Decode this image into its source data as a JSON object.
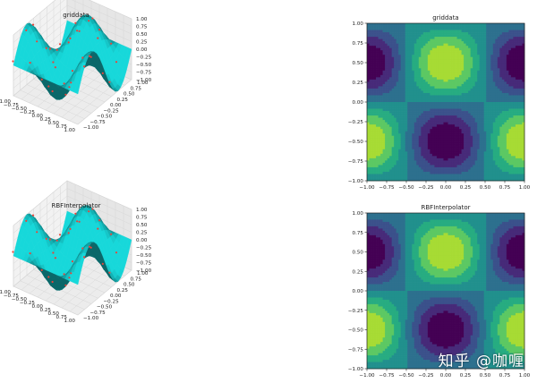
{
  "watermark": "知乎 @咖喱",
  "chart_data": [
    {
      "type": "surface3d",
      "title": "griddata",
      "x_ticks": [
        "−1.00",
        "−0.75",
        "−0.50",
        "−0.25",
        "0.00",
        "0.25",
        "0.50",
        "0.75",
        "1.00"
      ],
      "y_ticks": [
        "−1.00",
        "−0.75",
        "−0.50",
        "−0.25",
        "0.00",
        "0.25",
        "0.50",
        "0.75",
        "1.00"
      ],
      "z_ticks": [
        "1.00",
        "0.75",
        "0.50",
        "0.25",
        "0.00",
        "−0.25",
        "−0.50",
        "−0.75",
        "−1.00"
      ],
      "xlim": [
        -1,
        1
      ],
      "ylim": [
        -1,
        1
      ],
      "zlim": [
        -1,
        1
      ],
      "surface_color": "#1bbcbc",
      "point_color": "#e8443a",
      "grid": true
    },
    {
      "type": "contour",
      "title": "griddata",
      "x_ticks": [
        "−1.00",
        "−0.75",
        "−0.50",
        "−0.25",
        "0.00",
        "0.25",
        "0.50",
        "0.75",
        "1.00"
      ],
      "y_ticks": [
        "1.00",
        "0.75",
        "0.50",
        "0.25",
        "0.00",
        "−0.25",
        "−0.50",
        "−0.75",
        "−1.00"
      ],
      "xlim": [
        -1,
        1
      ],
      "ylim": [
        -1,
        1
      ],
      "colormap": "viridis"
    },
    {
      "type": "surface3d",
      "title": "RBFInterpolator",
      "x_ticks": [
        "−1.00",
        "−0.75",
        "−0.50",
        "−0.25",
        "0.00",
        "0.25",
        "0.50",
        "0.75",
        "1.00"
      ],
      "y_ticks": [
        "−1.00",
        "−0.75",
        "−0.50",
        "−0.25",
        "0.00",
        "0.25",
        "0.50",
        "0.75",
        "1.00"
      ],
      "z_ticks": [
        "1.00",
        "0.75",
        "0.50",
        "0.25",
        "0.00",
        "−0.25",
        "−0.50",
        "−0.75",
        "−1.00"
      ],
      "xlim": [
        -1,
        1
      ],
      "ylim": [
        -1,
        1
      ],
      "zlim": [
        -1,
        1
      ],
      "surface_color": "#1bbcbc",
      "point_color": "#e8443a",
      "grid": true
    },
    {
      "type": "contour",
      "title": "RBFInterpolator",
      "x_ticks": [
        "−1.00",
        "−0.75",
        "−0.50",
        "−0.25",
        "0.00",
        "0.25",
        "0.50",
        "0.75",
        "1.00"
      ],
      "y_ticks": [
        "1.00",
        "0.75",
        "0.50",
        "0.25",
        "0.00",
        "−0.25",
        "−0.50",
        "−0.75",
        "−1.00"
      ],
      "xlim": [
        -1,
        1
      ],
      "ylim": [
        -1,
        1
      ],
      "colormap": "viridis"
    }
  ]
}
